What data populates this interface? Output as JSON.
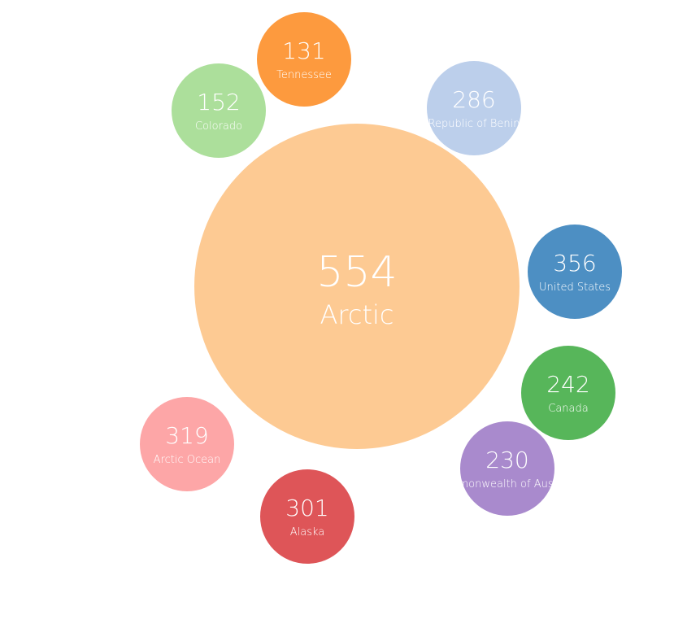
{
  "chart_data": {
    "type": "bubble",
    "central": {
      "label": "Arctic",
      "value": 554,
      "color": "#fdca93"
    },
    "items": [
      {
        "label": "Tennessee",
        "value": 131,
        "color": "#fd9a3e"
      },
      {
        "label": "Colorado",
        "value": 152,
        "color": "#acdf9b"
      },
      {
        "label": "Republic of Benin",
        "value": 286,
        "color": "#bccfeb"
      },
      {
        "label": "United States",
        "value": 356,
        "color": "#4d8fc3"
      },
      {
        "label": "Canada",
        "value": 242,
        "color": "#57b65a"
      },
      {
        "label": "Commonwealth of Australia",
        "value": 230,
        "color": "#a98acd"
      },
      {
        "label": "Alaska",
        "value": 301,
        "color": "#de5558"
      },
      {
        "label": "Arctic Ocean",
        "value": 319,
        "color": "#fda6a7"
      }
    ]
  }
}
